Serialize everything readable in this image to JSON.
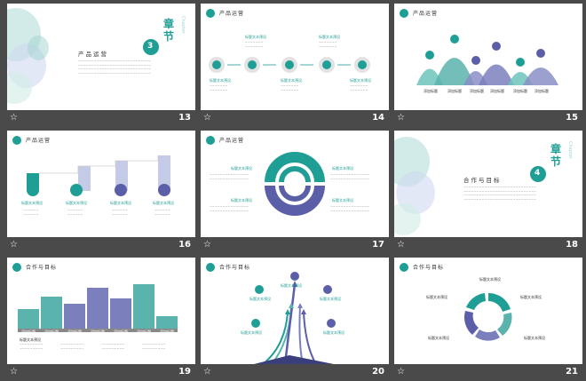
{
  "slides": [
    {
      "num": "13",
      "title": "产品运营",
      "chapter_top": "章",
      "chapter_mid": "节",
      "chapter_num": "3",
      "chapter_en": "Chapter"
    },
    {
      "num": "14",
      "title": "产品运营",
      "label": "标题文本预设"
    },
    {
      "num": "15",
      "title": "产品运营",
      "label": "添加标题"
    },
    {
      "num": "16",
      "title": "产品运营",
      "label": "标题文本预设"
    },
    {
      "num": "17",
      "title": "产品运营",
      "label": "标题文本预设"
    },
    {
      "num": "18",
      "title": "合作与目标",
      "chapter_top": "章",
      "chapter_mid": "节",
      "chapter_num": "4",
      "chapter_en": "Chapter"
    },
    {
      "num": "19",
      "title": "合作与目标",
      "label": "添加标题",
      "left_label": "标题文本预设"
    },
    {
      "num": "20",
      "title": "合作与目标",
      "label": "标题文本预设"
    },
    {
      "num": "21",
      "title": "合作与目标",
      "label": "标题文本预设"
    }
  ],
  "icons": {
    "star": "☆"
  },
  "colors": {
    "teal": "#1f9e95",
    "purple": "#6b6fb0",
    "bg": "#4a4a4a"
  }
}
